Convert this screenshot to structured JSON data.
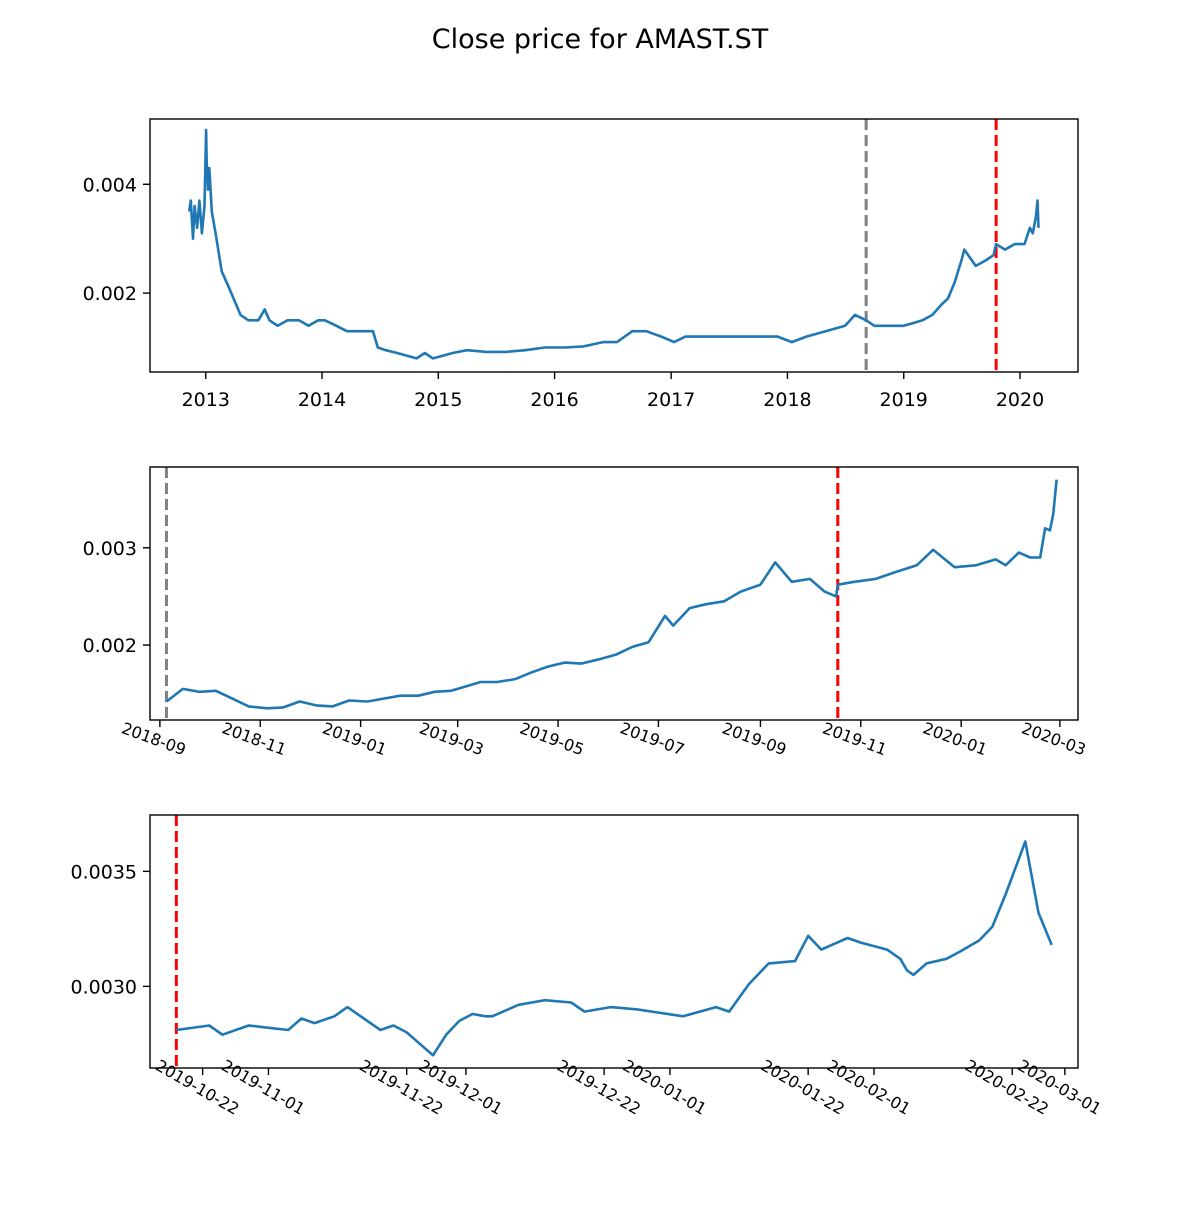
{
  "title": "Close price for AMAST.ST",
  "colors": {
    "series": "#1f77b4",
    "gray_marker": "#808080",
    "red_marker": "#ff0000"
  },
  "chart_data": [
    {
      "type": "line",
      "name": "full-history",
      "x_tick_labels": [
        "2013",
        "2014",
        "2015",
        "2016",
        "2017",
        "2018",
        "2019",
        "2020"
      ],
      "x_ticks": [
        "2013-01-01",
        "2014-01-01",
        "2015-01-01",
        "2016-01-01",
        "2017-01-01",
        "2018-01-01",
        "2019-01-01",
        "2020-01-01"
      ],
      "x_range": [
        "2012-07-10",
        "2020-07-01"
      ],
      "ylim": [
        0.00055,
        0.0052
      ],
      "y_ticks": [
        0.002,
        0.004
      ],
      "y_tick_labels": [
        "0.002",
        "0.004"
      ],
      "markers": [
        {
          "x": "2018-09-05",
          "color": "gray",
          "style": "dashed"
        },
        {
          "x": "2019-10-18",
          "color": "red",
          "style": "dashed"
        }
      ],
      "series": [
        {
          "x": [
            "2012-11-10",
            "2012-11-15",
            "2012-11-22",
            "2012-11-27",
            "2012-12-05",
            "2012-12-12",
            "2012-12-20",
            "2012-12-28",
            "2013-01-02",
            "2013-01-04",
            "2013-01-08",
            "2013-01-12",
            "2013-01-20",
            "2013-02-01",
            "2013-02-20",
            "2013-03-15",
            "2013-04-20",
            "2013-05-15",
            "2013-06-15",
            "2013-07-05",
            "2013-07-20",
            "2013-08-15",
            "2013-09-15",
            "2013-10-20",
            "2013-11-20",
            "2013-12-20",
            "2014-01-10",
            "2014-02-15",
            "2014-03-20",
            "2014-04-20",
            "2014-05-20",
            "2014-06-10",
            "2014-06-25",
            "2014-07-20",
            "2014-08-25",
            "2014-09-25",
            "2014-10-25",
            "2014-11-20",
            "2014-12-15",
            "2015-01-15",
            "2015-02-15",
            "2015-04-01",
            "2015-06-01",
            "2015-08-01",
            "2015-10-01",
            "2015-12-01",
            "2016-02-01",
            "2016-04-01",
            "2016-06-01",
            "2016-07-15",
            "2016-09-01",
            "2016-10-15",
            "2016-12-01",
            "2017-01-10",
            "2017-02-15",
            "2017-04-01",
            "2017-06-01",
            "2017-08-01",
            "2017-10-01",
            "2017-12-01",
            "2018-01-15",
            "2018-03-01",
            "2018-05-01",
            "2018-07-01",
            "2018-08-01",
            "2018-09-05",
            "2018-10-01",
            "2018-11-01",
            "2018-12-01",
            "2019-01-01",
            "2019-02-01",
            "2019-03-01",
            "2019-04-01",
            "2019-05-01",
            "2019-05-20",
            "2019-06-10",
            "2019-07-01",
            "2019-07-10",
            "2019-08-15",
            "2019-09-15",
            "2019-10-10",
            "2019-10-18",
            "2019-11-15",
            "2019-12-15",
            "2020-01-15",
            "2020-02-01",
            "2020-02-10",
            "2020-02-20",
            "2020-02-25",
            "2020-02-28"
          ],
          "y": [
            0.0035,
            0.0037,
            0.003,
            0.0036,
            0.0032,
            0.0037,
            0.0031,
            0.0036,
            0.005,
            0.0044,
            0.0039,
            0.0043,
            0.0035,
            0.0031,
            0.0024,
            0.0021,
            0.0016,
            0.0015,
            0.0015,
            0.0017,
            0.0015,
            0.0014,
            0.0015,
            0.0015,
            0.0014,
            0.0015,
            0.0015,
            0.0014,
            0.0013,
            0.0013,
            0.0013,
            0.0013,
            0.001,
            0.00095,
            0.0009,
            0.00085,
            0.0008,
            0.0009,
            0.0008,
            0.00085,
            0.0009,
            0.00095,
            0.00092,
            0.00092,
            0.00095,
            0.001,
            0.001,
            0.00102,
            0.0011,
            0.0011,
            0.0013,
            0.0013,
            0.0012,
            0.0011,
            0.0012,
            0.0012,
            0.0012,
            0.0012,
            0.0012,
            0.0012,
            0.0011,
            0.0012,
            0.0013,
            0.0014,
            0.0016,
            0.0015,
            0.0014,
            0.0014,
            0.0014,
            0.0014,
            0.00145,
            0.0015,
            0.0016,
            0.0018,
            0.0019,
            0.0022,
            0.0026,
            0.0028,
            0.0025,
            0.0026,
            0.0027,
            0.0029,
            0.0028,
            0.0029,
            0.0029,
            0.0032,
            0.0031,
            0.0034,
            0.0037,
            0.0032
          ]
        }
      ]
    },
    {
      "type": "line",
      "name": "since-2018-09",
      "x_tick_labels": [
        "2018-09",
        "2018-11",
        "2019-01",
        "2019-03",
        "2019-05",
        "2019-07",
        "2019-09",
        "2019-11",
        "2020-01",
        "2020-03"
      ],
      "x_ticks": [
        "2018-09-01",
        "2018-11-01",
        "2019-01-01",
        "2019-03-01",
        "2019-05-01",
        "2019-07-01",
        "2019-09-01",
        "2019-11-01",
        "2020-01-01",
        "2020-03-01"
      ],
      "x_range": [
        "2018-08-26",
        "2020-03-12"
      ],
      "ylim": [
        0.00123,
        0.00383
      ],
      "y_ticks": [
        0.002,
        0.003
      ],
      "y_tick_labels": [
        "0.002",
        "0.003"
      ],
      "markers": [
        {
          "x": "2018-09-05",
          "color": "gray",
          "style": "dashed"
        },
        {
          "x": "2019-10-18",
          "color": "red",
          "style": "dashed"
        }
      ],
      "series": [
        {
          "x": [
            "2018-09-05",
            "2018-09-15",
            "2018-09-25",
            "2018-10-05",
            "2018-10-15",
            "2018-10-25",
            "2018-11-05",
            "2018-11-15",
            "2018-11-25",
            "2018-12-05",
            "2018-12-15",
            "2018-12-25",
            "2019-01-05",
            "2019-01-15",
            "2019-01-25",
            "2019-02-05",
            "2019-02-15",
            "2019-02-25",
            "2019-03-05",
            "2019-03-15",
            "2019-03-25",
            "2019-04-05",
            "2019-04-15",
            "2019-04-25",
            "2019-05-05",
            "2019-05-15",
            "2019-05-25",
            "2019-06-05",
            "2019-06-15",
            "2019-06-25",
            "2019-07-05",
            "2019-07-10",
            "2019-07-20",
            "2019-07-30",
            "2019-08-10",
            "2019-08-20",
            "2019-09-01",
            "2019-09-10",
            "2019-09-20",
            "2019-10-01",
            "2019-10-10",
            "2019-10-17",
            "2019-10-18",
            "2019-10-28",
            "2019-11-10",
            "2019-11-22",
            "2019-12-05",
            "2019-12-15",
            "2019-12-28",
            "2020-01-10",
            "2020-01-22",
            "2020-01-28",
            "2020-02-05",
            "2020-02-12",
            "2020-02-18",
            "2020-02-21",
            "2020-02-24",
            "2020-02-26",
            "2020-02-28"
          ],
          "y": [
            0.00142,
            0.00155,
            0.00152,
            0.00153,
            0.00145,
            0.00137,
            0.00135,
            0.00136,
            0.00142,
            0.00138,
            0.00137,
            0.00143,
            0.00142,
            0.00145,
            0.00148,
            0.00148,
            0.00152,
            0.00153,
            0.00157,
            0.00162,
            0.00162,
            0.00165,
            0.00172,
            0.00178,
            0.00182,
            0.00181,
            0.00185,
            0.0019,
            0.00198,
            0.00203,
            0.0023,
            0.0022,
            0.00238,
            0.00242,
            0.00245,
            0.00255,
            0.00262,
            0.00285,
            0.00265,
            0.00268,
            0.00255,
            0.0025,
            0.00262,
            0.00265,
            0.00268,
            0.00275,
            0.00282,
            0.00298,
            0.0028,
            0.00282,
            0.00288,
            0.00282,
            0.00295,
            0.0029,
            0.0029,
            0.0032,
            0.00318,
            0.00335,
            0.0037
          ]
        }
      ]
    },
    {
      "type": "line",
      "name": "since-2019-10-18",
      "x_tick_labels": [
        "2019-10-22",
        "2019-11-01",
        "2019-11-22",
        "2019-12-01",
        "2019-12-22",
        "2020-01-01",
        "2020-01-22",
        "2020-02-01",
        "2020-02-22",
        "2020-03-01"
      ],
      "x_ticks": [
        "2019-10-22",
        "2019-11-01",
        "2019-11-22",
        "2019-12-01",
        "2019-12-22",
        "2020-01-01",
        "2020-01-22",
        "2020-02-01",
        "2020-02-22",
        "2020-03-01"
      ],
      "x_range": [
        "2019-10-14",
        "2020-03-03"
      ],
      "ylim": [
        0.002645,
        0.003745
      ],
      "y_ticks": [
        0.003,
        0.0035
      ],
      "y_tick_labels": [
        "0.0030",
        "0.0035"
      ],
      "markers": [
        {
          "x": "2019-10-18",
          "color": "red",
          "style": "dashed"
        }
      ],
      "series": [
        {
          "x": [
            "2019-10-18",
            "2019-10-23",
            "2019-10-25",
            "2019-10-29",
            "2019-11-01",
            "2019-11-04",
            "2019-11-06",
            "2019-11-08",
            "2019-11-11",
            "2019-11-13",
            "2019-11-18",
            "2019-11-20",
            "2019-11-22",
            "2019-11-26",
            "2019-11-28",
            "2019-11-30",
            "2019-12-02",
            "2019-12-04",
            "2019-12-05",
            "2019-12-09",
            "2019-12-11",
            "2019-12-13",
            "2019-12-17",
            "2019-12-19",
            "2019-12-23",
            "2019-12-27",
            "2020-01-03",
            "2020-01-08",
            "2020-01-10",
            "2020-01-13",
            "2020-01-16",
            "2020-01-20",
            "2020-01-22",
            "2020-01-24",
            "2020-01-28",
            "2020-01-30",
            "2020-02-03",
            "2020-02-05",
            "2020-02-06",
            "2020-02-07",
            "2020-02-09",
            "2020-02-12",
            "2020-02-14",
            "2020-02-17",
            "2020-02-19",
            "2020-02-21",
            "2020-02-24",
            "2020-02-26",
            "2020-02-28"
          ],
          "y": [
            0.00281,
            0.00283,
            0.00279,
            0.00283,
            0.00282,
            0.00281,
            0.00286,
            0.00284,
            0.00287,
            0.00291,
            0.00281,
            0.00283,
            0.0028,
            0.0027,
            0.00279,
            0.00285,
            0.00288,
            0.00287,
            0.00287,
            0.00292,
            0.00293,
            0.00294,
            0.00293,
            0.00289,
            0.00291,
            0.0029,
            0.00287,
            0.00291,
            0.00289,
            0.00301,
            0.0031,
            0.00311,
            0.00322,
            0.00316,
            0.00321,
            0.00319,
            0.00316,
            0.00312,
            0.00307,
            0.00305,
            0.0031,
            0.00312,
            0.00315,
            0.0032,
            0.00326,
            0.0034,
            0.00363,
            0.00332,
            0.00318
          ]
        }
      ]
    }
  ]
}
